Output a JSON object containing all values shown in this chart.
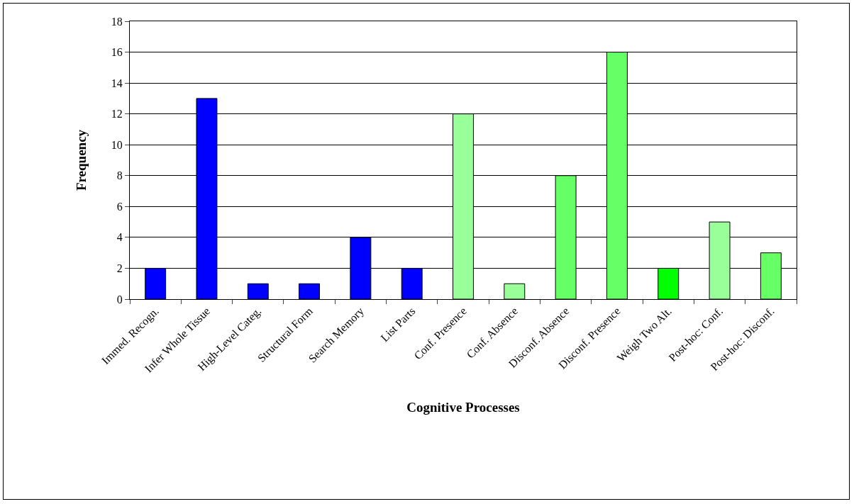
{
  "chart_data": {
    "type": "bar",
    "xlabel": "Cognitive Processes",
    "ylabel": "Frequency",
    "categories": [
      "Immed. Recogn.",
      "Infer Whole Tissue",
      "High-Level Categ.",
      "Structural Form",
      "Search Memory",
      "List Parts",
      "Conf. Presence",
      "Conf. Absence",
      "Disconf. Absence",
      "Disconf. Presence",
      "Weigh Two Alt.",
      "Post-hoc: Conf.",
      "Post-hoc: Disconf."
    ],
    "values": [
      2,
      13,
      1,
      1,
      4,
      2,
      12,
      1,
      8,
      16,
      2,
      5,
      3
    ],
    "colors": [
      "#0000ff",
      "#0000ff",
      "#0000ff",
      "#0000ff",
      "#0000ff",
      "#0000ff",
      "#99ff99",
      "#99ff99",
      "#66ff66",
      "#66ff66",
      "#00ff00",
      "#99ff99",
      "#66ff66"
    ],
    "ylim": [
      0,
      18
    ],
    "yticks": [
      0,
      2,
      4,
      6,
      8,
      10,
      12,
      14,
      16,
      18
    ],
    "grid": "y",
    "legend": false
  }
}
